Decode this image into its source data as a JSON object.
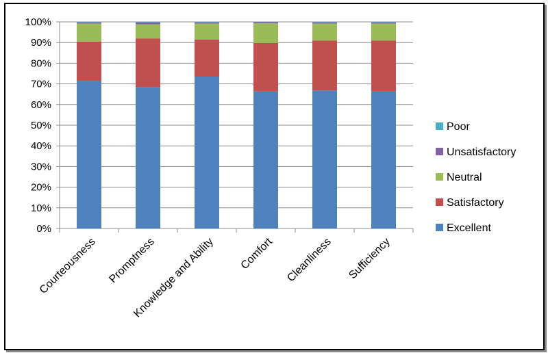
{
  "chart_data": {
    "type": "bar",
    "stacked": true,
    "percent": true,
    "title": "",
    "xlabel": "",
    "ylabel": "",
    "ylim": [
      0,
      100
    ],
    "yticks": [
      "0%",
      "10%",
      "20%",
      "30%",
      "40%",
      "50%",
      "60%",
      "70%",
      "80%",
      "90%",
      "100%"
    ],
    "grid": true,
    "legend_position": "right",
    "categories": [
      "Courteousness",
      "Promptness",
      "Knowledge and Ability",
      "Comfort",
      "Cleanliness",
      "Sufficiency"
    ],
    "series": [
      {
        "name": "Excellent",
        "color": "#4f81bd",
        "values": [
          71.5,
          68.5,
          73.5,
          66.3,
          66.8,
          66.3
        ]
      },
      {
        "name": "Satisfactory",
        "color": "#c0504d",
        "values": [
          19.0,
          23.5,
          18.0,
          23.5,
          24.2,
          24.7
        ]
      },
      {
        "name": "Neutral",
        "color": "#9bbb59",
        "values": [
          8.7,
          6.8,
          7.7,
          9.5,
          8.2,
          8.2
        ]
      },
      {
        "name": "Unsatisfactory",
        "color": "#8064a2",
        "values": [
          0.6,
          1.0,
          0.6,
          0.6,
          0.6,
          0.6
        ]
      },
      {
        "name": "Poor",
        "color": "#4bacc6",
        "values": [
          0.2,
          0.2,
          0.2,
          0.1,
          0.2,
          0.2
        ]
      }
    ],
    "legend_order": [
      "Poor",
      "Unsatisfactory",
      "Neutral",
      "Satisfactory",
      "Excellent"
    ]
  }
}
